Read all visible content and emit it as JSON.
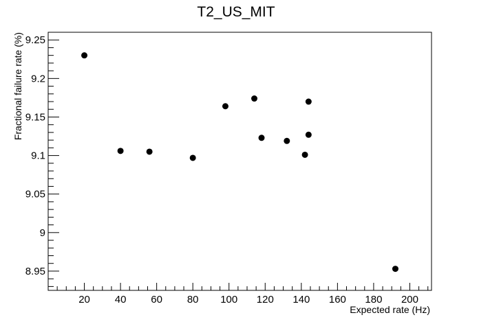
{
  "chart_data": {
    "type": "scatter",
    "title": "T2_US_MIT",
    "xlabel": "Expected rate (Hz)",
    "ylabel": "Fractional failure rate (%)",
    "xlim": [
      0,
      212
    ],
    "ylim": [
      8.925,
      9.26
    ],
    "xticks": [
      20,
      40,
      60,
      80,
      100,
      120,
      140,
      160,
      180,
      200
    ],
    "yticks": [
      8.95,
      9,
      9.05,
      9.1,
      9.15,
      9.2,
      9.25
    ],
    "xtick_labels": [
      "20",
      "40",
      "60",
      "80",
      "100",
      "120",
      "140",
      "160",
      "180",
      "200"
    ],
    "ytick_labels": [
      "8.95",
      "9",
      "9.05",
      "9.1",
      "9.15",
      "9.2",
      "9.25"
    ],
    "grid": false,
    "legend": "none",
    "marker_color": "#000000",
    "points": [
      {
        "x": 20,
        "y": 9.23
      },
      {
        "x": 40,
        "y": 9.106
      },
      {
        "x": 56,
        "y": 9.105
      },
      {
        "x": 80,
        "y": 9.097
      },
      {
        "x": 98,
        "y": 9.164
      },
      {
        "x": 114,
        "y": 9.174
      },
      {
        "x": 118,
        "y": 9.123
      },
      {
        "x": 132,
        "y": 9.119
      },
      {
        "x": 142,
        "y": 9.101
      },
      {
        "x": 144,
        "y": 9.17
      },
      {
        "x": 144,
        "y": 9.127
      },
      {
        "x": 192,
        "y": 8.953
      }
    ]
  }
}
